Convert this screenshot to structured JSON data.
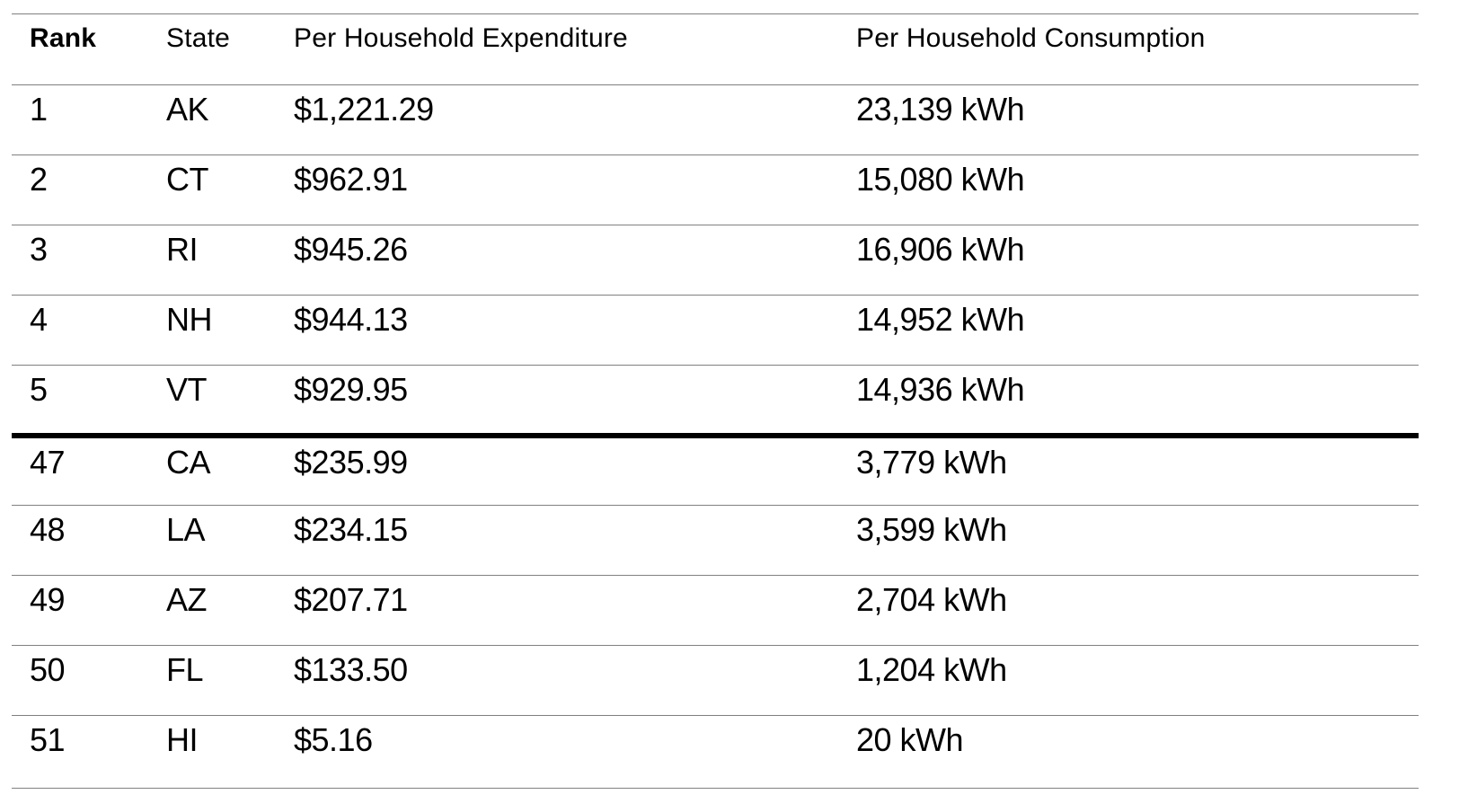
{
  "colors": {
    "background": "#ffffff",
    "text": "#000000",
    "grid_line": "#808080",
    "divider_line": "#000000"
  },
  "chart_data": {
    "type": "table",
    "columns": [
      "Rank",
      "State",
      "Per Household Expenditure",
      "Per Household Consumption"
    ],
    "rows": [
      [
        "1",
        "AK",
        "$1,221.29",
        "23,139 kWh"
      ],
      [
        "2",
        "CT",
        "$962.91",
        "15,080 kWh"
      ],
      [
        "3",
        "RI",
        "$945.26",
        "16,906 kWh"
      ],
      [
        "4",
        "NH",
        "$944.13",
        "14,952 kWh"
      ],
      [
        "5",
        "VT",
        "$929.95",
        "14,936 kWh"
      ],
      [
        "47",
        "CA",
        "$235.99",
        "3,779 kWh"
      ],
      [
        "48",
        "LA",
        "$234.15",
        "3,599 kWh"
      ],
      [
        "49",
        "AZ",
        "$207.71",
        "2,704 kWh"
      ],
      [
        "50",
        "FL",
        "$133.50",
        "1,204 kWh"
      ],
      [
        "51",
        "HI",
        "$5.16",
        "20 kWh"
      ]
    ],
    "layout": {
      "grid": "horizontal-lines-only",
      "header_bold_columns": [
        "Rank"
      ],
      "thick_divider_before_rank": "47",
      "rows_shown": "top 5 and bottom 5 of 51 ranked entries"
    }
  }
}
